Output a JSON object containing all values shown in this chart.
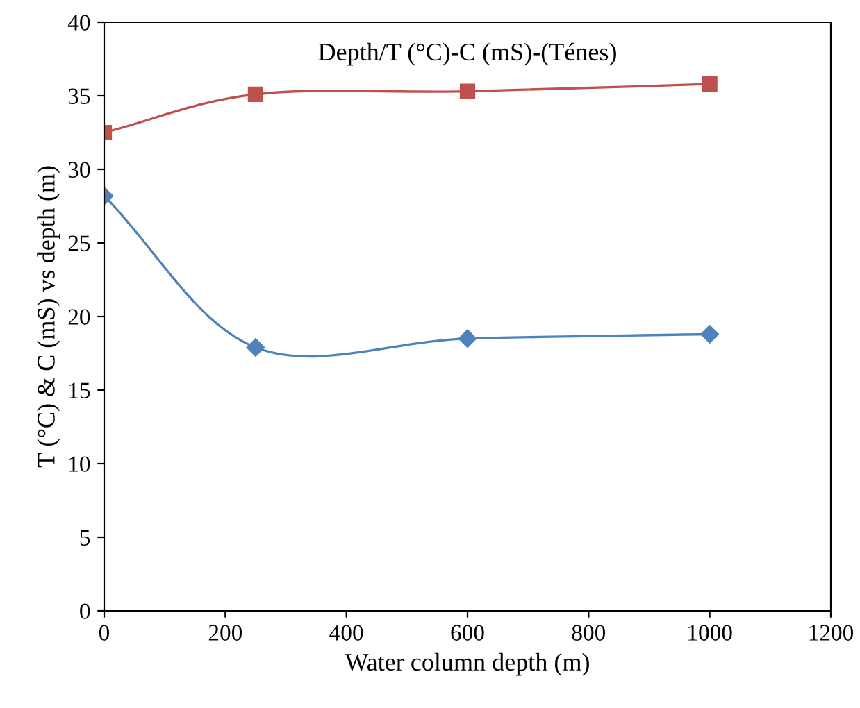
{
  "chart_data": {
    "type": "line",
    "title": "Depth/T (°C)-C (mS)-(Ténes)",
    "xlabel": "Water column depth (m)",
    "ylabel": "T (°C) & C (mS) vs depth (m)",
    "x": [
      0,
      250,
      600,
      1000
    ],
    "series": [
      {
        "color": "#c0504d",
        "marker": "square",
        "values": [
          32.5,
          35.1,
          35.3,
          35.8
        ]
      },
      {
        "color": "#4f81bd",
        "marker": "diamond",
        "values": [
          28.2,
          17.9,
          18.5,
          18.8
        ]
      }
    ],
    "xlim": [
      0,
      1200
    ],
    "xticks": [
      0,
      200,
      400,
      600,
      800,
      1000,
      1200
    ],
    "ylim": [
      0,
      40
    ],
    "yticks": [
      0,
      5,
      10,
      15,
      20,
      25,
      30,
      35,
      40
    ],
    "grid": false,
    "legend": false
  }
}
